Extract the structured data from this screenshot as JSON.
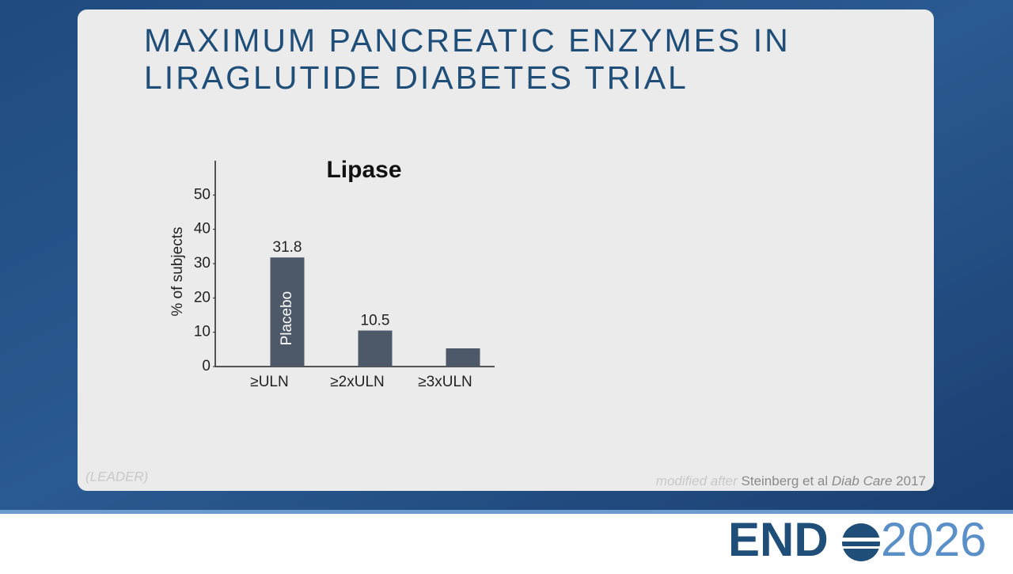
{
  "slide": {
    "title_lines": [
      "MAXIMUM PANCREATIC ENZYMES IN",
      "LIRAGLUTIDE DIABETES TRIAL"
    ],
    "study": "(LEADER)",
    "citation": {
      "prefix": "modified after",
      "authors": "Steinberg et al",
      "journal": "Diab Care",
      "year": "2017"
    },
    "logo": {
      "word": "END",
      "year": "2026"
    }
  },
  "chart_data": {
    "type": "bar",
    "title": "Lipase",
    "y_label": "% of subjects",
    "categories": [
      "≥ULN",
      "≥2xULN",
      "≥3xULN"
    ],
    "series": [
      {
        "name": "Placebo",
        "color": "#4d5868",
        "values": [
          31.8,
          10.5,
          5.3
        ]
      }
    ],
    "value_labels": [
      "31.8",
      "10.5",
      null
    ],
    "ylim": [
      0,
      60
    ],
    "yticks": [
      0,
      10,
      20,
      30,
      40,
      50
    ],
    "grid": false
  }
}
